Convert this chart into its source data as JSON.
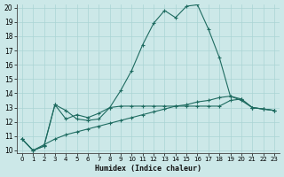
{
  "xlabel": "Humidex (Indice chaleur)",
  "xlim": [
    -0.5,
    23.5
  ],
  "ylim": [
    9.8,
    20.2
  ],
  "xticks": [
    0,
    1,
    2,
    3,
    4,
    5,
    6,
    7,
    8,
    9,
    10,
    11,
    12,
    13,
    14,
    15,
    16,
    17,
    18,
    19,
    20,
    21,
    22,
    23
  ],
  "yticks": [
    10,
    11,
    12,
    13,
    14,
    15,
    16,
    17,
    18,
    19,
    20
  ],
  "bg_color": "#cce8e8",
  "line_color": "#1e6b60",
  "grid_color": "#aad4d4",
  "series1_x": [
    0,
    1,
    2,
    3,
    4,
    5,
    6,
    7,
    8,
    9,
    10,
    11,
    12,
    13,
    14,
    15,
    16,
    17,
    18,
    19,
    20,
    21,
    22,
    23
  ],
  "series1_y": [
    10.8,
    10.0,
    10.3,
    13.2,
    12.8,
    12.2,
    12.1,
    12.2,
    13.0,
    14.2,
    15.6,
    17.4,
    18.9,
    19.8,
    19.3,
    20.1,
    20.2,
    18.5,
    16.5,
    13.8,
    13.5,
    13.0,
    12.9,
    12.8
  ],
  "series2_x": [
    0,
    1,
    2,
    3,
    4,
    5,
    6,
    7,
    8,
    9,
    10,
    11,
    12,
    13,
    14,
    15,
    16,
    17,
    18,
    19,
    20,
    21,
    22,
    23
  ],
  "series2_y": [
    10.8,
    10.0,
    10.3,
    13.2,
    12.2,
    12.5,
    12.3,
    12.6,
    13.0,
    13.1,
    13.1,
    13.1,
    13.1,
    13.1,
    13.1,
    13.1,
    13.1,
    13.1,
    13.1,
    13.5,
    13.6,
    13.0,
    12.9,
    12.8
  ],
  "series3_x": [
    0,
    1,
    2,
    3,
    4,
    5,
    6,
    7,
    8,
    9,
    10,
    11,
    12,
    13,
    14,
    15,
    16,
    17,
    18,
    19,
    20,
    21,
    22,
    23
  ],
  "series3_y": [
    10.8,
    10.0,
    10.4,
    10.8,
    11.1,
    11.3,
    11.5,
    11.7,
    11.9,
    12.1,
    12.3,
    12.5,
    12.7,
    12.9,
    13.1,
    13.2,
    13.4,
    13.5,
    13.7,
    13.8,
    13.6,
    13.0,
    12.9,
    12.8
  ]
}
